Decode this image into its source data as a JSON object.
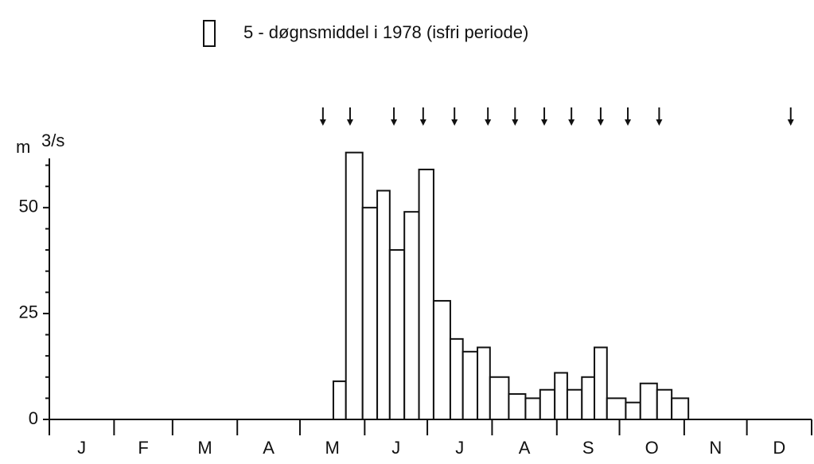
{
  "chart_data": {
    "type": "histogram",
    "ylabel_unit": "m",
    "ylabel_exp": "3/s",
    "series": [
      {
        "name": "5 - døgnsmiddel i 1978 (isfri periode)",
        "color": "#ffffff",
        "bins": [
          136,
          142,
          150,
          157,
          163,
          170,
          177,
          184,
          192,
          198,
          205,
          211,
          220,
          228,
          235,
          242,
          248,
          255,
          261,
          267,
          276,
          283,
          291,
          298,
          306
        ],
        "values": [
          9,
          63,
          50,
          54,
          40,
          49,
          59,
          28,
          19,
          16,
          17,
          10,
          6,
          5,
          7,
          11,
          7,
          10,
          17,
          5,
          4,
          8.5,
          7,
          5
        ]
      }
    ],
    "arrows_x": [
      131,
      144,
      165,
      179,
      194,
      210,
      223,
      237,
      250,
      264,
      277,
      292,
      355
    ],
    "xlim": [
      0,
      365
    ],
    "xticks": [
      {
        "value": 15.5,
        "label": "J"
      },
      {
        "value": 45,
        "label": "F"
      },
      {
        "value": 74.5,
        "label": "M"
      },
      {
        "value": 105,
        "label": "A"
      },
      {
        "value": 135.5,
        "label": "M"
      },
      {
        "value": 166,
        "label": "J"
      },
      {
        "value": 196.5,
        "label": "J"
      },
      {
        "value": 227.5,
        "label": "A"
      },
      {
        "value": 258,
        "label": "S"
      },
      {
        "value": 288.5,
        "label": "O"
      },
      {
        "value": 319,
        "label": "N"
      },
      {
        "value": 349.5,
        "label": "D"
      }
    ],
    "xminor_ticks": [
      0,
      31,
      59,
      90,
      120,
      151,
      181,
      212,
      243,
      273,
      304,
      334,
      365
    ],
    "ylim": [
      0,
      65
    ],
    "yticks": [
      0,
      25,
      50
    ],
    "yminor_ticks": [
      5,
      10,
      15,
      20,
      30,
      35,
      40,
      45,
      55,
      60
    ]
  }
}
